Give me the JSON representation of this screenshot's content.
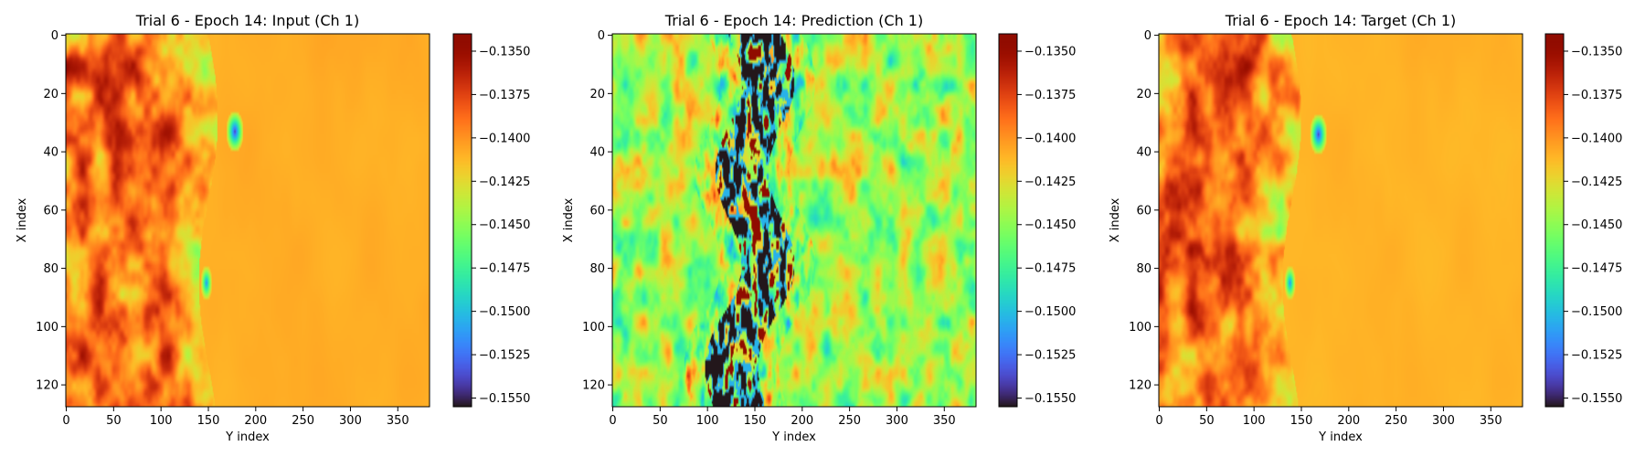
{
  "chart_data": [
    {
      "type": "heatmap",
      "title": "Trial 6 - Epoch 14: Input (Ch 1)",
      "xlabel": "Y index",
      "ylabel": "X index",
      "xticks": [
        0,
        50,
        100,
        150,
        200,
        250,
        300,
        350
      ],
      "yticks": [
        0,
        20,
        40,
        60,
        80,
        100,
        120
      ],
      "xlim": [
        0,
        383
      ],
      "ylim": [
        0,
        127
      ],
      "colormap": "turbo",
      "colorbar": {
        "min": -0.1555,
        "max": -0.134,
        "ticks": [
          -0.135,
          -0.1375,
          -0.14,
          -0.1425,
          -0.145,
          -0.1475,
          -0.15,
          -0.1525,
          -0.155
        ],
        "tick_labels": [
          "−0.1350",
          "−0.1375",
          "−0.1400",
          "−0.1425",
          "−0.1450",
          "−0.1475",
          "−0.1500",
          "−0.1525",
          "−0.1550"
        ]
      },
      "field": {
        "kind": "input",
        "background": -0.1408,
        "front_y": 150
      }
    },
    {
      "type": "heatmap",
      "title": "Trial 6 - Epoch 14: Prediction (Ch 1)",
      "xlabel": "Y index",
      "ylabel": "X index",
      "xticks": [
        0,
        50,
        100,
        150,
        200,
        250,
        300,
        350
      ],
      "yticks": [
        0,
        20,
        40,
        60,
        80,
        100,
        120
      ],
      "xlim": [
        0,
        383
      ],
      "ylim": [
        0,
        127
      ],
      "colormap": "turbo",
      "colorbar": {
        "min": -0.1555,
        "max": -0.134,
        "ticks": [
          -0.135,
          -0.1375,
          -0.14,
          -0.1425,
          -0.145,
          -0.1475,
          -0.15,
          -0.1525,
          -0.155
        ],
        "tick_labels": [
          "−0.1350",
          "−0.1375",
          "−0.1400",
          "−0.1425",
          "−0.1450",
          "−0.1475",
          "−0.1500",
          "−0.1525",
          "−0.1550"
        ]
      },
      "field": {
        "kind": "prediction",
        "background": -0.1445,
        "front_y": 150
      }
    },
    {
      "type": "heatmap",
      "title": "Trial 6 - Epoch 14: Target (Ch 1)",
      "xlabel": "Y index",
      "ylabel": "X index",
      "xticks": [
        0,
        50,
        100,
        150,
        200,
        250,
        300,
        350
      ],
      "yticks": [
        0,
        20,
        40,
        60,
        80,
        100,
        120
      ],
      "xlim": [
        0,
        383
      ],
      "ylim": [
        0,
        127
      ],
      "colormap": "turbo",
      "colorbar": {
        "min": -0.1555,
        "max": -0.134,
        "ticks": [
          -0.135,
          -0.1375,
          -0.14,
          -0.1425,
          -0.145,
          -0.1475,
          -0.15,
          -0.1525,
          -0.155
        ],
        "tick_labels": [
          "−0.1350",
          "−0.1375",
          "−0.1400",
          "−0.1425",
          "−0.1450",
          "−0.1475",
          "−0.1500",
          "−0.1525",
          "−0.1550"
        ]
      },
      "field": {
        "kind": "target",
        "background": -0.141,
        "front_y": 140
      }
    }
  ]
}
